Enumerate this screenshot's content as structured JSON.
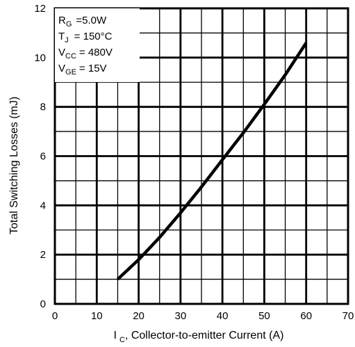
{
  "chart_data": {
    "type": "line",
    "xlabel_main": "I",
    "xlabel_sub": "C",
    "xlabel_rest": ", Collector-to-emitter Current (A)",
    "ylabel": "Total Switching Losses (mJ)",
    "xlim": [
      0,
      70
    ],
    "ylim": [
      0,
      12
    ],
    "x_major_ticks": [
      0,
      10,
      20,
      30,
      40,
      50,
      60,
      70
    ],
    "y_major_ticks": [
      0,
      2,
      4,
      6,
      8,
      10,
      12
    ],
    "x_tick_labels": [
      "0",
      "10",
      "20",
      "30",
      "40",
      "50",
      "60",
      "70"
    ],
    "y_tick_labels": [
      "0",
      "2",
      "4",
      "6",
      "8",
      "10",
      "12"
    ],
    "x_minor_step": 5,
    "y_minor_step": 1,
    "grid": true,
    "legend_position": "top-left",
    "conditions": [
      {
        "label": "R",
        "sub": "G",
        "value": "=5.0W"
      },
      {
        "label": "T",
        "sub": "J",
        "value": "= 150°C"
      },
      {
        "label": "V",
        "sub": "CC",
        "value": "= 480V"
      },
      {
        "label": "V",
        "sub": "GE",
        "value": "= 15V"
      }
    ],
    "series": [
      {
        "x": [
          15,
          20,
          25,
          30,
          35,
          40,
          45,
          50,
          55,
          60
        ],
        "values": [
          1.0,
          1.8,
          2.7,
          3.7,
          4.75,
          5.85,
          6.95,
          8.1,
          9.3,
          10.6
        ]
      }
    ]
  }
}
